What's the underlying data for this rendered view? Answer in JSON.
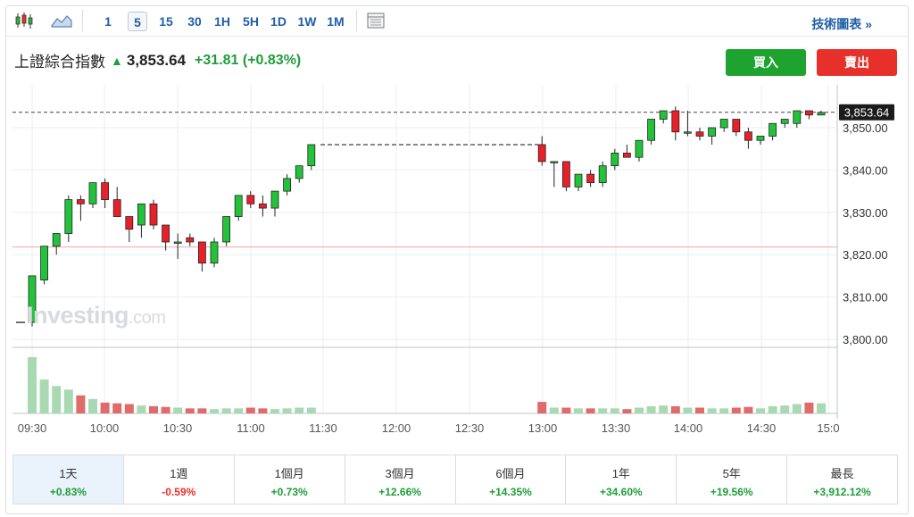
{
  "toolbar": {
    "chart_type_icon": "candlestick-icon",
    "area_icon": "area-chart-icon",
    "timeframes": [
      "1",
      "5",
      "15",
      "30",
      "1H",
      "5H",
      "1D",
      "1W",
      "1M"
    ],
    "active_timeframe": "5",
    "table_icon": "table-icon",
    "tech_link": "技術圖表 »"
  },
  "quote": {
    "name": "上證綜合指數",
    "price": "3,853.64",
    "change": "+31.81 (+0.83%)"
  },
  "actions": {
    "buy": "買入",
    "sell": "賣出"
  },
  "watermark": {
    "brand": "Investing",
    "suffix": ".com"
  },
  "periods": [
    {
      "label": "1天",
      "value": "+0.83%",
      "trend": "pos",
      "active": true
    },
    {
      "label": "1週",
      "value": "-0.59%",
      "trend": "neg"
    },
    {
      "label": "1個月",
      "value": "+0.73%",
      "trend": "pos"
    },
    {
      "label": "3個月",
      "value": "+12.66%",
      "trend": "pos"
    },
    {
      "label": "6個月",
      "value": "+14.35%",
      "trend": "pos"
    },
    {
      "label": "1年",
      "value": "+34.60%",
      "trend": "pos"
    },
    {
      "label": "5年",
      "value": "+19.56%",
      "trend": "pos"
    },
    {
      "label": "最長",
      "value": "+3,912.12%",
      "trend": "pos"
    }
  ],
  "colors": {
    "up": "#22c33a",
    "down": "#e8202a",
    "vol_up": "#a8d9b2",
    "vol_down": "#e06b6b",
    "grid": "#eceef2",
    "prev_close": "#f0a8a8"
  },
  "chart_data": {
    "type": "candlestick",
    "y_ticks": [
      "3,850.00",
      "3,840.00",
      "3,830.00",
      "3,820.00",
      "3,810.00",
      "3,800.00"
    ],
    "y_tick_values": [
      3850,
      3840,
      3830,
      3820,
      3810,
      3800
    ],
    "ylim": [
      3797,
      3857
    ],
    "x_ticks": [
      "09:30",
      "10:00",
      "10:30",
      "11:00",
      "11:30",
      "12:00",
      "12:30",
      "13:00",
      "13:30",
      "14:00",
      "14:30",
      "15:0"
    ],
    "current_price": "3,853.64",
    "current_value": 3853.64,
    "prev_close": 3821.8,
    "morning": [
      [
        3804,
        3815,
        3803,
        3815,
        78
      ],
      [
        3814,
        3822,
        3813,
        3822,
        47
      ],
      [
        3822,
        3825,
        3820,
        3825,
        38
      ],
      [
        3825,
        3834,
        3823,
        3833,
        33
      ],
      [
        3833,
        3834,
        3828,
        3832,
        25
      ],
      [
        3832,
        3837,
        3831,
        3837,
        20
      ],
      [
        3837,
        3838,
        3831,
        3833,
        15
      ],
      [
        3833,
        3836,
        3829,
        3829,
        14
      ],
      [
        3829,
        3829,
        3823,
        3826,
        13
      ],
      [
        3827,
        3832,
        3824,
        3832,
        11
      ],
      [
        3832,
        3833,
        3826,
        3827,
        10
      ],
      [
        3827,
        3827,
        3821,
        3823,
        9
      ],
      [
        3823,
        3825,
        3819,
        3823,
        8
      ],
      [
        3824,
        3825,
        3822,
        3823,
        7
      ],
      [
        3823,
        3823,
        3816,
        3818,
        7
      ],
      [
        3818,
        3824,
        3817,
        3823,
        6
      ],
      [
        3823,
        3829,
        3822,
        3829,
        7
      ],
      [
        3829,
        3834,
        3828,
        3834,
        7
      ],
      [
        3834,
        3835,
        3831,
        3832,
        8
      ],
      [
        3832,
        3834,
        3829,
        3831,
        7
      ],
      [
        3831,
        3835,
        3829,
        3835,
        6
      ],
      [
        3835,
        3839,
        3834,
        3838,
        7
      ],
      [
        3838,
        3841,
        3837,
        3841,
        8
      ],
      [
        3841,
        3846,
        3840,
        3846,
        8
      ]
    ],
    "afternoon": [
      [
        3846,
        3848,
        3841,
        3842,
        16
      ],
      [
        3842,
        3842,
        3836,
        3842,
        8
      ],
      [
        3842,
        3842,
        3835,
        3836,
        8
      ],
      [
        3836,
        3839,
        3835,
        3839,
        7
      ],
      [
        3839,
        3840,
        3836,
        3837,
        7
      ],
      [
        3837,
        3842,
        3836,
        3841,
        7
      ],
      [
        3841,
        3845,
        3840,
        3844,
        7
      ],
      [
        3844,
        3846,
        3843,
        3843,
        6
      ],
      [
        3843,
        3847,
        3842,
        3847,
        8
      ],
      [
        3847,
        3852,
        3846,
        3852,
        10
      ],
      [
        3852,
        3854,
        3851,
        3854,
        11
      ],
      [
        3854,
        3855,
        3847,
        3849,
        10
      ],
      [
        3849,
        3854,
        3848,
        3849,
        8
      ],
      [
        3849,
        3850,
        3847,
        3848,
        8
      ],
      [
        3848,
        3850,
        3846,
        3850,
        7
      ],
      [
        3850,
        3852,
        3849,
        3852,
        7
      ],
      [
        3852,
        3852,
        3848,
        3849,
        8
      ],
      [
        3849,
        3850,
        3845,
        3847,
        9
      ],
      [
        3847,
        3848,
        3846,
        3848,
        7
      ],
      [
        3848,
        3851,
        3847,
        3851,
        10
      ],
      [
        3851,
        3852,
        3850,
        3852,
        11
      ],
      [
        3851,
        3854,
        3850,
        3854,
        13
      ],
      [
        3854,
        3854,
        3852,
        3853,
        15
      ],
      [
        3853,
        3854,
        3853,
        3853.6,
        14
      ]
    ]
  }
}
